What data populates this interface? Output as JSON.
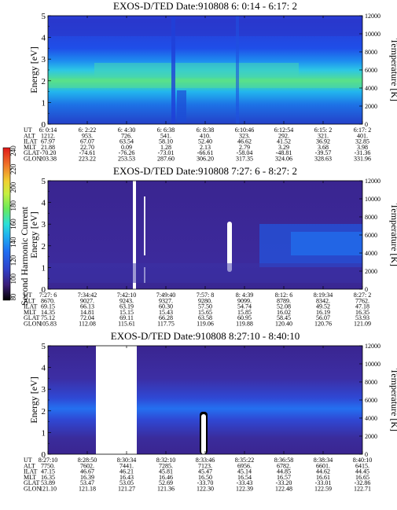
{
  "colorbar": {
    "label": "Second Harmonic Current",
    "ticks": [
      "240",
      "220",
      "200",
      "180",
      "160",
      "140",
      "120",
      "100",
      "80"
    ],
    "colors": [
      "#000000",
      "#3a1d78",
      "#3c2ea0",
      "#2f3cd6",
      "#1f6ef2",
      "#1fb0f0",
      "#2ce0d8",
      "#46e0a0",
      "#6aea5a",
      "#a8f040",
      "#e0f03a",
      "#f0c030",
      "#f08a2a",
      "#f04a28",
      "#e01818"
    ]
  },
  "chart_data": [
    {
      "type": "heatmap",
      "title": "EXOS-D/TED   Date:910808   6: 0:14 - 6:17: 2",
      "ylabel": "Energy [eV]",
      "y2label": "Temperature [K]",
      "ylim": [
        0,
        5
      ],
      "y2lim": [
        0,
        12000
      ],
      "yticks": [
        "0",
        "1",
        "2",
        "3",
        "4",
        "5"
      ],
      "y2ticks": [
        "0",
        "2000",
        "4000",
        "6000",
        "8000",
        "10000",
        "12000"
      ],
      "row_labels": [
        "UT",
        "ALT",
        "ILAT",
        "MLT",
        "GLAT",
        "GLON"
      ],
      "columns": [
        [
          "6: 0:14",
          "1212.",
          "67.97",
          "21.88",
          "-70.20",
          "203.38"
        ],
        [
          "6: 2:22",
          "953.",
          "67.07",
          "22.70",
          "-74.61",
          "223.22"
        ],
        [
          "6: 4:30",
          "726.",
          "63.54",
          "0.09",
          "-76.26",
          "253.53"
        ],
        [
          "6: 6:38",
          "541.",
          "58.10",
          "1.28",
          "-73.01",
          "287.60"
        ],
        [
          "6: 8:38",
          "410.",
          "52.40",
          "2.13",
          "-66.61",
          "306.20"
        ],
        [
          "6:10:46",
          "323.",
          "46.62",
          "2.79",
          "-58.04",
          "317.35"
        ],
        [
          "6:12:54",
          "292.",
          "41.52",
          "3.29",
          "-48.81",
          "324.06"
        ],
        [
          "6:15: 2",
          "321.",
          "36.92",
          "3.68",
          "-39.57",
          "328.63"
        ],
        [
          "6:17: 2",
          "401.",
          "32.85",
          "3.98",
          "-31.36",
          "331.96"
        ]
      ]
    },
    {
      "type": "heatmap",
      "title": "EXOS-D/TED   Date:910808   7:27: 6 - 8:27: 2",
      "ylabel": "Energy [eV]",
      "y2label": "Temperature [K]",
      "ylim": [
        0,
        5
      ],
      "y2lim": [
        0,
        12000
      ],
      "yticks": [
        "0",
        "1",
        "2",
        "3",
        "4",
        "5"
      ],
      "y2ticks": [
        "0",
        "2000",
        "4000",
        "6000",
        "8000",
        "10000",
        "12000"
      ],
      "row_labels": [
        "UT",
        "ALT",
        "ILAT",
        "MLT",
        "GLAT",
        "GLON"
      ],
      "columns": [
        [
          "7:27: 6",
          "8670.",
          "69.15",
          "14.35",
          "75.12",
          "105.83"
        ],
        [
          "7:34:42",
          "9027.",
          "66.13",
          "14.81",
          "72.04",
          "112.08"
        ],
        [
          "7:42:10",
          "9243.",
          "63.19",
          "15.15",
          "69.11",
          "115.61"
        ],
        [
          "7:49:40",
          "9327.",
          "60.30",
          "15.43",
          "66.28",
          "117.75"
        ],
        [
          "7:57: 8",
          "9280.",
          "57.50",
          "15.65",
          "63.58",
          "119.06"
        ],
        [
          "8: 4:39",
          "9099.",
          "54.74",
          "15.85",
          "60.95",
          "119.88"
        ],
        [
          "8:12: 6",
          "8789.",
          "52.08",
          "16.02",
          "58.45",
          "120.40"
        ],
        [
          "8:19:34",
          "8342.",
          "49.52",
          "16.19",
          "56.07",
          "120.76"
        ],
        [
          "8:27: 2",
          "7762.",
          "47.18",
          "16.35",
          "53.93",
          "121.09"
        ]
      ]
    },
    {
      "type": "heatmap",
      "title": "EXOS-D/TED   Date:910808   8:27:10 - 8:40:10",
      "ylabel": "Energy [eV]",
      "y2label": "Temperature [K]",
      "ylim": [
        0,
        5
      ],
      "y2lim": [
        0,
        12000
      ],
      "yticks": [
        "0",
        "1",
        "2",
        "3",
        "4",
        "5"
      ],
      "y2ticks": [
        "0",
        "2000",
        "4000",
        "6000",
        "8000",
        "10000",
        "12000"
      ],
      "row_labels": [
        "UT",
        "ALT",
        "ILAT",
        "MLT",
        "GLAT",
        "GLON"
      ],
      "columns": [
        [
          "8:27:10",
          "7750.",
          "47.15",
          "16.35",
          "53.89",
          "121.10"
        ],
        [
          "8:28:50",
          "7602.",
          "46.67",
          "16.39",
          "53.47",
          "121.18"
        ],
        [
          "8:30:34",
          "7441.",
          "46.21",
          "16.43",
          "53.05",
          "121.27"
        ],
        [
          "8:32:10",
          "7285.",
          "45.81",
          "16.46",
          "52.69",
          "121.36"
        ],
        [
          "8:33:46",
          "7123.",
          "45.47",
          "16.50",
          "-33.70",
          "122.30"
        ],
        [
          "8:35:22",
          "6956.",
          "45.14",
          "16.54",
          "-33.43",
          "122.39"
        ],
        [
          "8:36:58",
          "6782.",
          "44.85",
          "16.57",
          "-33.20",
          "122.48"
        ],
        [
          "8:38:34",
          "6601.",
          "44.62",
          "16.61",
          "-33.01",
          "122.59"
        ],
        [
          "8:40:10",
          "6415.",
          "44.45",
          "16.65",
          "-32.86",
          "122.71"
        ]
      ]
    }
  ]
}
